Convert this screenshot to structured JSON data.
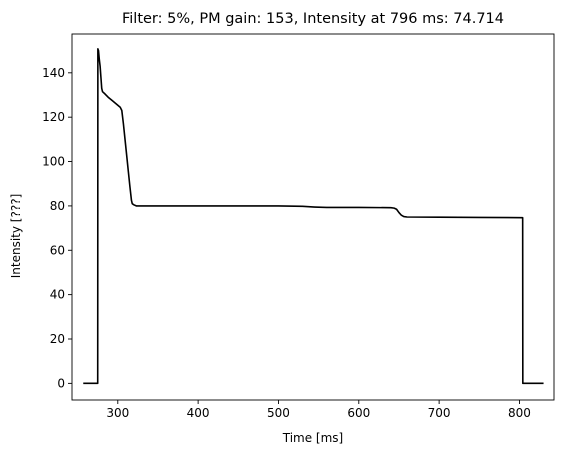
{
  "chart_data": {
    "type": "line",
    "title": "Filter: 5%, PM gain: 153, Intensity at 796 ms: 74.714",
    "xlabel": "Time [ms]",
    "ylabel": "Intensity [???]",
    "xlim": [
      243,
      843
    ],
    "ylim": [
      -7.5,
      157.5
    ],
    "xticks": [
      300,
      400,
      500,
      600,
      700,
      800
    ],
    "yticks": [
      0,
      20,
      40,
      60,
      80,
      100,
      120,
      140
    ],
    "grid": false,
    "series": [
      {
        "color": "#000000",
        "points": [
          [
            257,
            0
          ],
          [
            275,
            0
          ],
          [
            275.2,
            150.8
          ],
          [
            276,
            150
          ],
          [
            277,
            146
          ],
          [
            278,
            143
          ],
          [
            279,
            138
          ],
          [
            280,
            133
          ],
          [
            281,
            131.5
          ],
          [
            284,
            130.5
          ],
          [
            288,
            129
          ],
          [
            293,
            127.5
          ],
          [
            298,
            126
          ],
          [
            303,
            124.5
          ],
          [
            305,
            123
          ],
          [
            307,
            117
          ],
          [
            309,
            110
          ],
          [
            311,
            103
          ],
          [
            313,
            96
          ],
          [
            315,
            89
          ],
          [
            317,
            82.5
          ],
          [
            318,
            81
          ],
          [
            320,
            80.5
          ],
          [
            323,
            80
          ],
          [
            350,
            80
          ],
          [
            400,
            80
          ],
          [
            450,
            80
          ],
          [
            500,
            80
          ],
          [
            530,
            79.8
          ],
          [
            545,
            79.5
          ],
          [
            560,
            79.3
          ],
          [
            600,
            79.3
          ],
          [
            640,
            79.2
          ],
          [
            644,
            79
          ],
          [
            647,
            78.5
          ],
          [
            650,
            77
          ],
          [
            653,
            75.8
          ],
          [
            656,
            75.2
          ],
          [
            660,
            75
          ],
          [
            700,
            74.9
          ],
          [
            750,
            74.8
          ],
          [
            804,
            74.7
          ],
          [
            804.2,
            0
          ],
          [
            830,
            0
          ]
        ]
      }
    ]
  }
}
